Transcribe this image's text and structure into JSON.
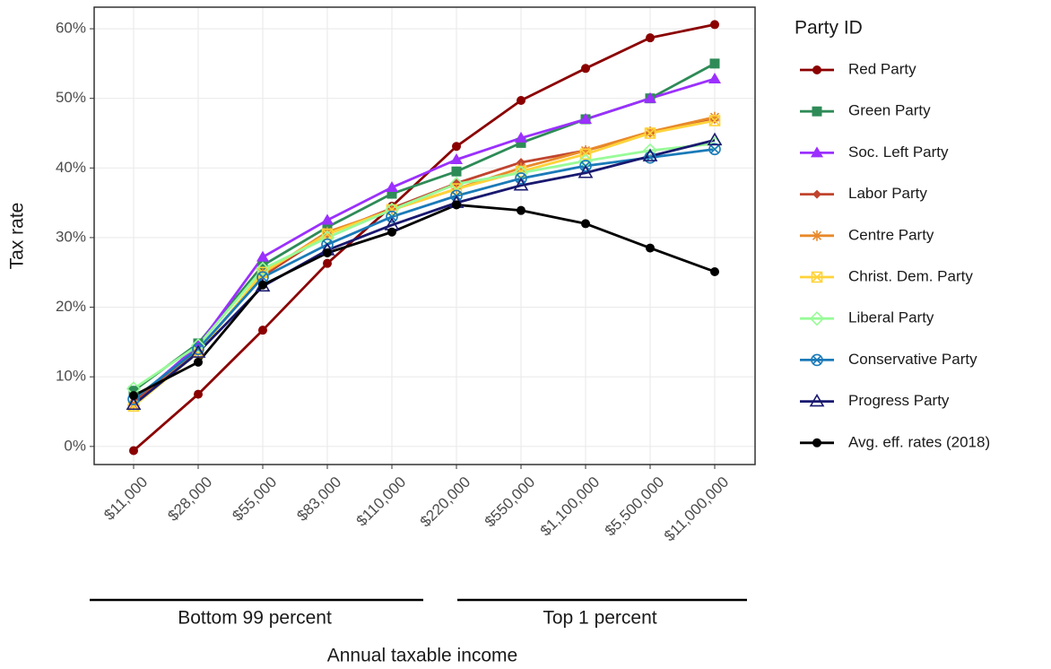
{
  "chart_data": {
    "type": "line",
    "x_label": "Annual taxable income",
    "y_label": "Tax rate",
    "legend_title": "Party ID",
    "annotations": [
      "Bottom 99 percent",
      "Top 1 percent"
    ],
    "categories": [
      "$11,000",
      "$28,000",
      "$55,000",
      "$83,000",
      "$110,000",
      "$220,000",
      "$550,000",
      "$1,100,000",
      "$5,500,000",
      "$11,000,000"
    ],
    "ylim": [
      -2.6,
      63.1
    ],
    "yticks": [
      {
        "value": 0,
        "label": "0%"
      },
      {
        "value": 10,
        "label": "10%"
      },
      {
        "value": 20,
        "label": "20%"
      },
      {
        "value": 30,
        "label": "30%"
      },
      {
        "value": 40,
        "label": "40%"
      },
      {
        "value": 50,
        "label": "50%"
      },
      {
        "value": 60,
        "label": "60%"
      }
    ],
    "grid": true,
    "legend": "right",
    "series": [
      {
        "name": "Red Party",
        "color": "#8b0000",
        "marker": "circle",
        "values": [
          -0.6,
          7.5,
          16.7,
          26.3,
          34.5,
          43.1,
          49.7,
          54.3,
          58.7,
          60.6
        ]
      },
      {
        "name": "Green Party",
        "color": "#2e8b57",
        "marker": "square",
        "values": [
          8.0,
          14.8,
          26.0,
          31.5,
          36.3,
          39.5,
          43.6,
          47.0,
          50.0,
          55.0
        ]
      },
      {
        "name": "Soc. Left Party",
        "color": "#9b30ff",
        "marker": "triangle",
        "values": [
          6.5,
          14.5,
          27.2,
          32.5,
          37.2,
          41.2,
          44.3,
          47.0,
          50.0,
          52.8
        ]
      },
      {
        "name": "Labor Party",
        "color": "#c0442e",
        "marker": "diamond",
        "values": [
          6.5,
          13.8,
          24.5,
          30.5,
          34.2,
          37.8,
          40.8,
          42.5,
          45.0,
          47.0
        ]
      },
      {
        "name": "Centre Party",
        "color": "#e8892b",
        "marker": "asterisk",
        "values": [
          6.0,
          13.7,
          24.8,
          30.8,
          34.0,
          37.0,
          40.0,
          42.5,
          45.2,
          47.3
        ]
      },
      {
        "name": "Christ. Dem. Party",
        "color": "#ffd33a",
        "marker": "boxx",
        "values": [
          5.8,
          13.5,
          25.0,
          30.5,
          34.0,
          37.0,
          39.5,
          42.0,
          45.0,
          46.8
        ]
      },
      {
        "name": "Liberal Party",
        "color": "#98fb98",
        "marker": "opendiamond",
        "values": [
          8.3,
          14.5,
          25.5,
          30.0,
          34.0,
          37.7,
          39.3,
          41.0,
          42.5,
          43.5
        ]
      },
      {
        "name": "Conservative Party",
        "color": "#1a7ab8",
        "marker": "circlex",
        "values": [
          6.8,
          14.0,
          24.3,
          29.0,
          33.0,
          36.0,
          38.5,
          40.3,
          41.5,
          42.7
        ]
      },
      {
        "name": "Progress Party",
        "color": "#191970",
        "marker": "opentriangle",
        "values": [
          6.0,
          13.5,
          23.0,
          28.2,
          31.8,
          35.0,
          37.5,
          39.3,
          41.7,
          44.0
        ]
      },
      {
        "name": "Avg. eff. rates (2018)",
        "color": "#000000",
        "marker": "circle",
        "values": [
          7.3,
          12.1,
          23.2,
          27.8,
          30.8,
          34.7,
          33.9,
          32.0,
          28.5,
          25.1
        ]
      }
    ]
  }
}
